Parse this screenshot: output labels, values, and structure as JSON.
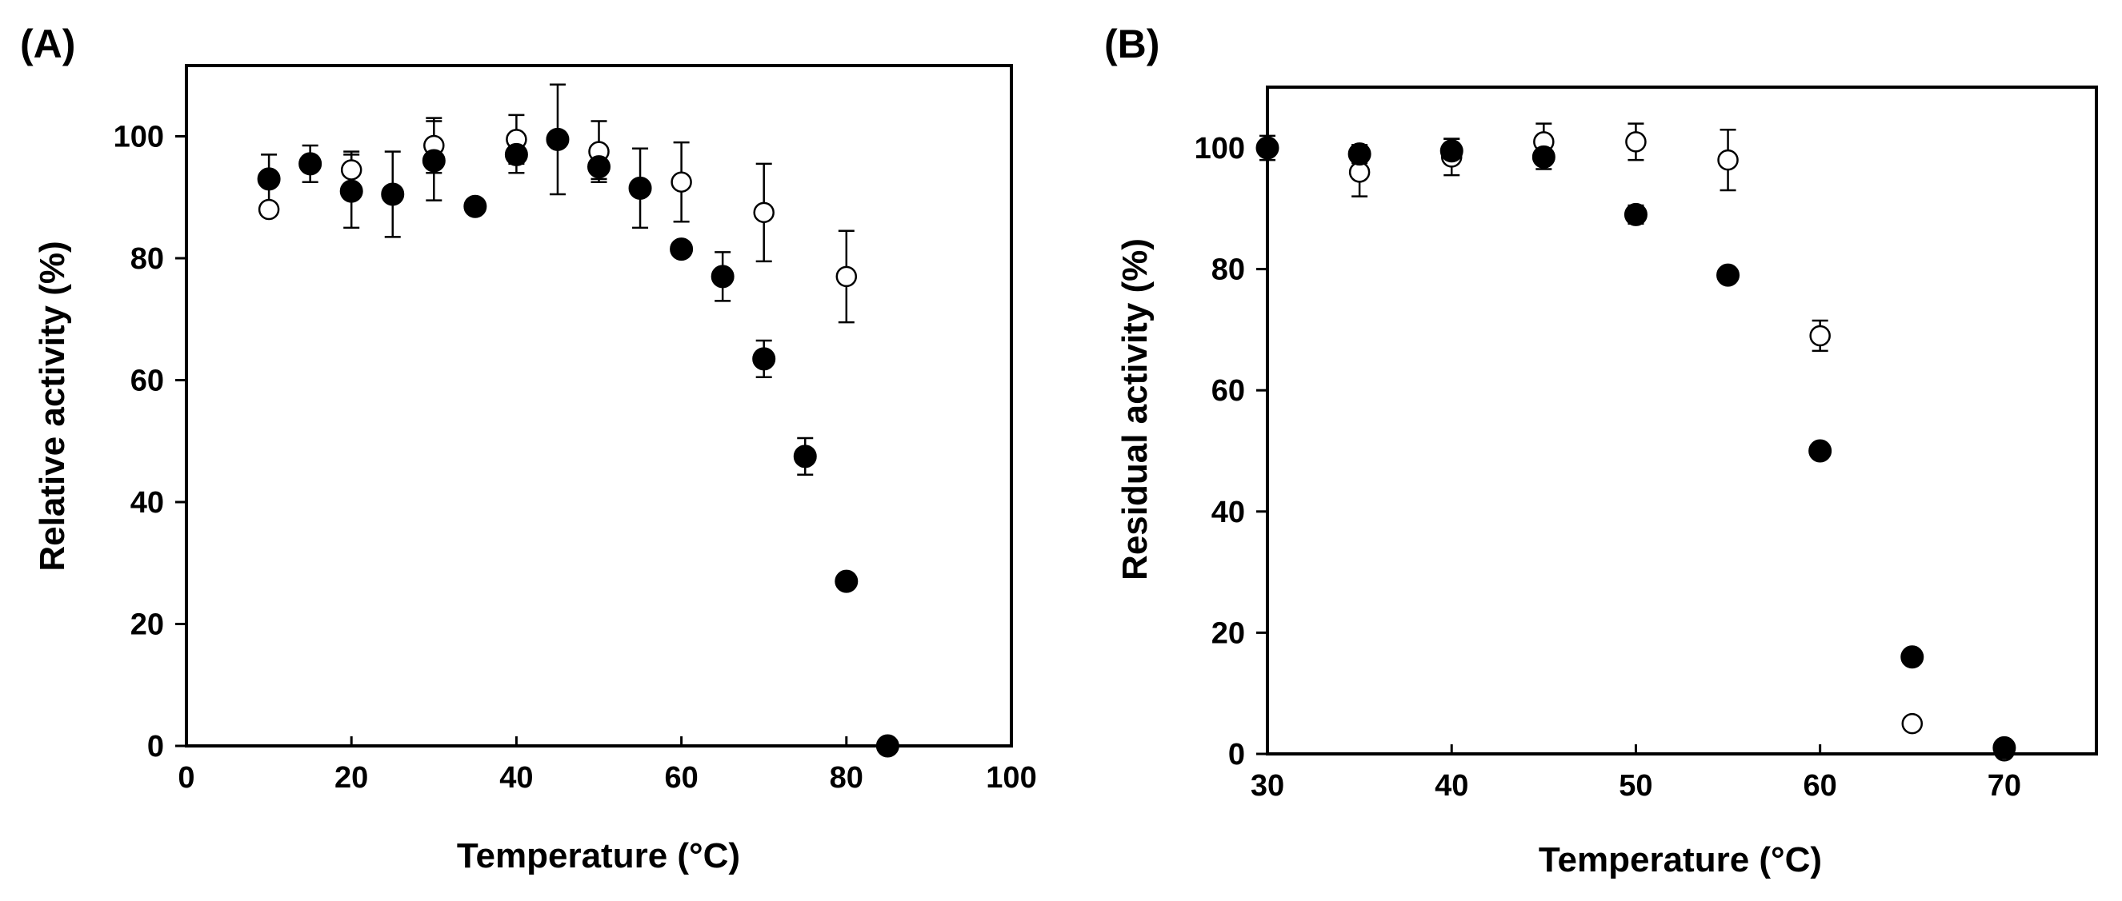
{
  "chart_data": [
    {
      "panel": "(A)",
      "type": "scatter",
      "xlabel": "Temperature (°C)",
      "ylabel": "Relative activity (%)",
      "xlim": [
        0,
        100
      ],
      "ylim": [
        0,
        110
      ],
      "xticks": [
        "0",
        "20",
        "40",
        "60",
        "80",
        "100"
      ],
      "yticks": [
        "0",
        "20",
        "40",
        "60",
        "80",
        "100"
      ],
      "grid": false,
      "legend": "none",
      "series": [
        {
          "marker": "filled-circle",
          "points": [
            {
              "x": 10,
              "y": 93,
              "err": 4
            },
            {
              "x": 15,
              "y": 95.5,
              "err": 3
            },
            {
              "x": 20,
              "y": 91,
              "err": 6
            },
            {
              "x": 25,
              "y": 90.5,
              "err": 7
            },
            {
              "x": 30,
              "y": 96,
              "err": 6.5
            },
            {
              "x": 35,
              "y": 88.5,
              "err": 0
            },
            {
              "x": 40,
              "y": 97,
              "err": 3
            },
            {
              "x": 45,
              "y": 99.5,
              "err": 9
            },
            {
              "x": 50,
              "y": 95,
              "err": 2
            },
            {
              "x": 55,
              "y": 91.5,
              "err": 6.5
            },
            {
              "x": 60,
              "y": 81.5,
              "err": 0
            },
            {
              "x": 65,
              "y": 77,
              "err": 4
            },
            {
              "x": 70,
              "y": 63.5,
              "err": 3
            },
            {
              "x": 75,
              "y": 47.5,
              "err": 3
            },
            {
              "x": 80,
              "y": 27,
              "err": 0
            },
            {
              "x": 85,
              "y": 0,
              "err": 0
            }
          ]
        },
        {
          "marker": "open-circle",
          "points": [
            {
              "x": 10,
              "y": 88,
              "err": 0
            },
            {
              "x": 20,
              "y": 94.5,
              "err": 3
            },
            {
              "x": 30,
              "y": 98.5,
              "err": 4.5
            },
            {
              "x": 40,
              "y": 99.5,
              "err": 4
            },
            {
              "x": 50,
              "y": 97.5,
              "err": 5
            },
            {
              "x": 60,
              "y": 92.5,
              "err": 6.5
            },
            {
              "x": 70,
              "y": 87.5,
              "err": 8
            },
            {
              "x": 80,
              "y": 77,
              "err": 7.5
            }
          ]
        }
      ]
    },
    {
      "panel": "(B)",
      "type": "scatter",
      "xlabel": "Temperature (°C)",
      "ylabel": "Residual activity (%)",
      "xlim": [
        30,
        75
      ],
      "ylim": [
        0,
        110
      ],
      "xticks": [
        "30",
        "40",
        "50",
        "60",
        "70"
      ],
      "yticks": [
        "0",
        "20",
        "40",
        "60",
        "80",
        "100"
      ],
      "grid": false,
      "legend": "none",
      "series": [
        {
          "marker": "filled-circle",
          "points": [
            {
              "x": 30,
              "y": 100,
              "err": 0
            },
            {
              "x": 35,
              "y": 99,
              "err": 1.5
            },
            {
              "x": 40,
              "y": 99.5,
              "err": 2
            },
            {
              "x": 45,
              "y": 98.5,
              "err": 2
            },
            {
              "x": 50,
              "y": 89,
              "err": 1.5
            },
            {
              "x": 55,
              "y": 79,
              "err": 0
            },
            {
              "x": 60,
              "y": 50,
              "err": 0
            },
            {
              "x": 65,
              "y": 16,
              "err": 0
            },
            {
              "x": 70,
              "y": 1,
              "err": 0
            }
          ]
        },
        {
          "marker": "open-circle",
          "points": [
            {
              "x": 30,
              "y": 100,
              "err": 2
            },
            {
              "x": 35,
              "y": 96,
              "err": 4
            },
            {
              "x": 40,
              "y": 98.5,
              "err": 3
            },
            {
              "x": 45,
              "y": 101,
              "err": 3
            },
            {
              "x": 50,
              "y": 101,
              "err": 3
            },
            {
              "x": 55,
              "y": 98,
              "err": 5
            },
            {
              "x": 60,
              "y": 69,
              "err": 2.5
            },
            {
              "x": 65,
              "y": 5,
              "err": 0
            },
            {
              "x": 70,
              "y": 0.5,
              "err": 0
            }
          ]
        }
      ]
    }
  ]
}
